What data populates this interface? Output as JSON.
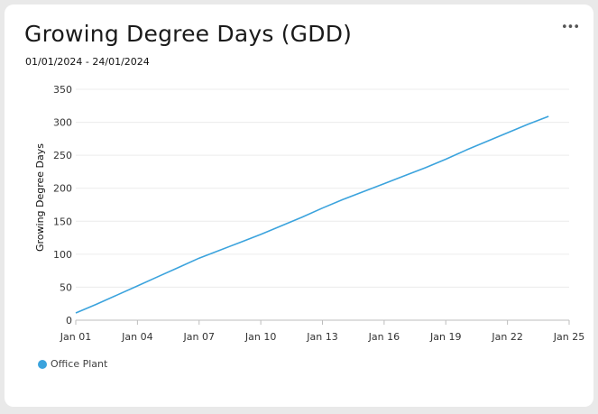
{
  "card": {
    "title": "Growing Degree Days (GDD)",
    "date_range": "01/01/2024 - 24/01/2024",
    "more_icon": "more-horizontal-icon",
    "more_glyph": "•••"
  },
  "chart_data": {
    "type": "line",
    "title": "Growing Degree Days (GDD)",
    "ylabel": "Growing Degree Days",
    "xlabel": "",
    "ylim": [
      0,
      350
    ],
    "yticks": [
      0,
      50,
      100,
      150,
      200,
      250,
      300,
      350
    ],
    "xlim": [
      "2024-01-01",
      "2024-01-25"
    ],
    "xticks": [
      "Jan 01",
      "Jan 04",
      "Jan 07",
      "Jan 10",
      "Jan 13",
      "Jan 16",
      "Jan 19",
      "Jan 22",
      "Jan 25"
    ],
    "grid": true,
    "legend_position": "bottom-left",
    "series": [
      {
        "name": "Office Plant",
        "color": "#3ba3dd",
        "points": [
          [
            "2024-01-01",
            11
          ],
          [
            "2024-01-02",
            24
          ],
          [
            "2024-01-03",
            38
          ],
          [
            "2024-01-04",
            52
          ],
          [
            "2024-01-05",
            66
          ],
          [
            "2024-01-06",
            80
          ],
          [
            "2024-01-07",
            94
          ],
          [
            "2024-01-08",
            106
          ],
          [
            "2024-01-09",
            118
          ],
          [
            "2024-01-10",
            130
          ],
          [
            "2024-01-11",
            143
          ],
          [
            "2024-01-12",
            156
          ],
          [
            "2024-01-13",
            170
          ],
          [
            "2024-01-14",
            183
          ],
          [
            "2024-01-15",
            195
          ],
          [
            "2024-01-16",
            207
          ],
          [
            "2024-01-17",
            219
          ],
          [
            "2024-01-18",
            231
          ],
          [
            "2024-01-19",
            244
          ],
          [
            "2024-01-20",
            258
          ],
          [
            "2024-01-21",
            271
          ],
          [
            "2024-01-22",
            284
          ],
          [
            "2024-01-23",
            297
          ],
          [
            "2024-01-24",
            309
          ]
        ]
      }
    ]
  }
}
